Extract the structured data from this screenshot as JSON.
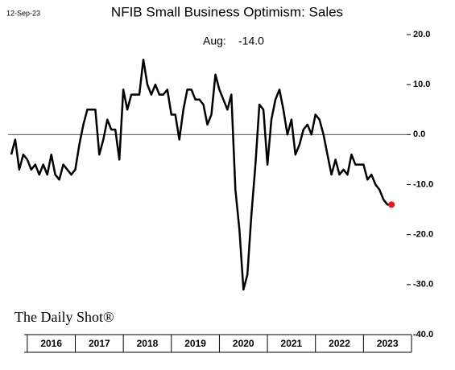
{
  "chart_data": {
    "type": "line",
    "title": "NFIB Small Business Optimism: Sales",
    "date_note": "12-Sep-23",
    "annotation_label": "Aug:",
    "annotation_value": "-14.0",
    "source": "The Daily Shot®",
    "color": "#000000",
    "last_point_color": "#e8141b",
    "categories": [
      "2016",
      "2017",
      "2018",
      "2019",
      "2020",
      "2021",
      "2022",
      "2023"
    ],
    "xticks": [
      2016,
      2017,
      2018,
      2019,
      2020,
      2021,
      2022,
      2023,
      2024
    ],
    "xlim": [
      2015.6,
      2024
    ],
    "ylim": [
      -40,
      20
    ],
    "yticks": [
      {
        "value": 20,
        "label": "20.0"
      },
      {
        "value": 10,
        "label": "10.0"
      },
      {
        "value": 0,
        "label": "0.0"
      },
      {
        "value": -10,
        "label": "-10.0"
      },
      {
        "value": -20,
        "label": "-20.0"
      },
      {
        "value": -30,
        "label": "-30.0"
      },
      {
        "value": -40,
        "label": "-40.0"
      }
    ],
    "zero_line": true,
    "x": [
      2015.667,
      2015.75,
      2015.833,
      2015.917,
      2016,
      2016.083,
      2016.167,
      2016.25,
      2016.333,
      2016.417,
      2016.5,
      2016.583,
      2016.667,
      2016.75,
      2016.833,
      2016.917,
      2017,
      2017.083,
      2017.167,
      2017.25,
      2017.333,
      2017.417,
      2017.5,
      2017.583,
      2017.667,
      2017.75,
      2017.833,
      2017.917,
      2018,
      2018.083,
      2018.167,
      2018.25,
      2018.333,
      2018.417,
      2018.5,
      2018.583,
      2018.667,
      2018.75,
      2018.833,
      2018.917,
      2019,
      2019.083,
      2019.167,
      2019.25,
      2019.333,
      2019.417,
      2019.5,
      2019.583,
      2019.667,
      2019.75,
      2019.833,
      2019.917,
      2020,
      2020.083,
      2020.167,
      2020.25,
      2020.333,
      2020.417,
      2020.5,
      2020.583,
      2020.667,
      2020.75,
      2020.833,
      2020.917,
      2021,
      2021.083,
      2021.167,
      2021.25,
      2021.333,
      2021.417,
      2021.5,
      2021.583,
      2021.667,
      2021.75,
      2021.833,
      2021.917,
      2022,
      2022.083,
      2022.167,
      2022.25,
      2022.333,
      2022.417,
      2022.5,
      2022.583,
      2022.667,
      2022.75,
      2022.833,
      2022.917,
      2023,
      2023.083,
      2023.167,
      2023.25,
      2023.333,
      2023.417,
      2023.5,
      2023.583
    ],
    "values": [
      -4,
      -1,
      -7,
      -4,
      -5,
      -7,
      -6,
      -8,
      -6,
      -8,
      -4,
      -8,
      -9,
      -6,
      -7,
      -8,
      -7,
      -2,
      2,
      5,
      5,
      5,
      -4,
      -1,
      3,
      1,
      1,
      -5,
      9,
      5,
      8,
      8,
      8,
      15,
      10,
      8,
      10,
      8,
      8,
      9,
      4,
      4,
      -1,
      5,
      9,
      9,
      7,
      7,
      6,
      2,
      4,
      12,
      9,
      7,
      5,
      8,
      -11,
      -19,
      -31,
      -28,
      -16,
      -6,
      6,
      5,
      -6,
      3,
      7,
      9,
      5,
      0,
      3,
      -4,
      -2,
      1,
      2,
      0,
      4,
      3,
      0,
      -4,
      -8,
      -5,
      -8,
      -7,
      -8,
      -4,
      -6,
      -6,
      -6,
      -9,
      -8,
      -10,
      -11,
      -13,
      -14,
      -14
    ]
  }
}
